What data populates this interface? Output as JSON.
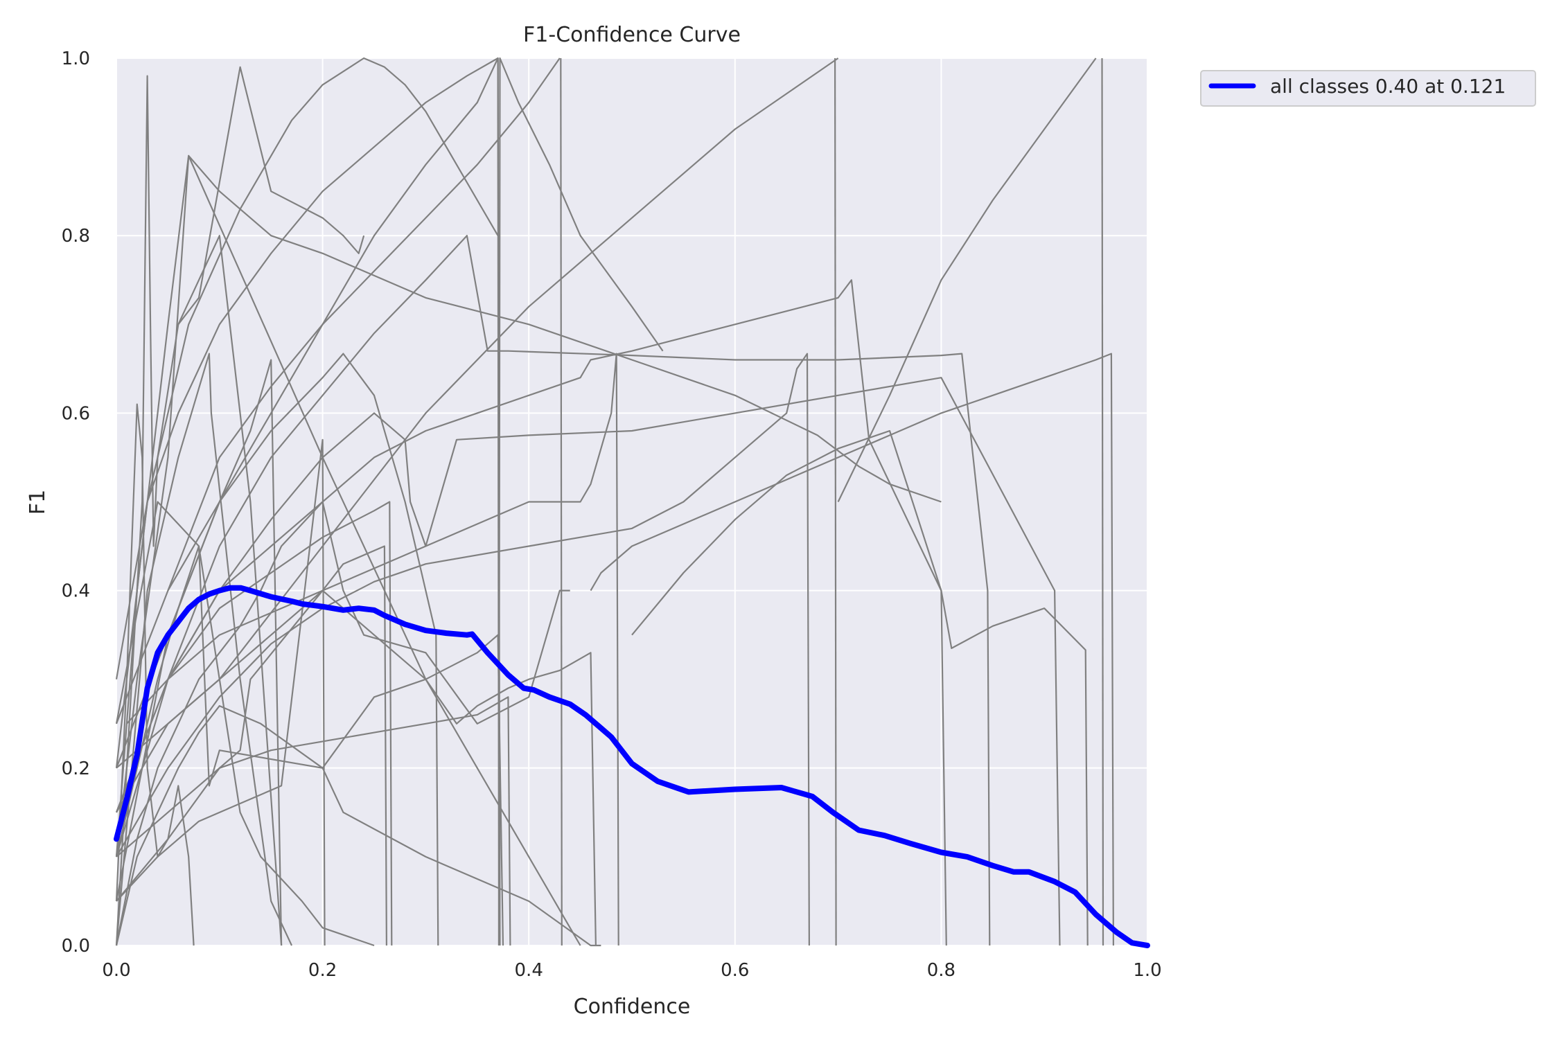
{
  "chart_data": {
    "type": "line",
    "title": "F1-Confidence Curve",
    "xlabel": "Confidence",
    "ylabel": "F1",
    "xlim": [
      0,
      1
    ],
    "ylim": [
      0,
      1
    ],
    "xticks": [
      "0.0",
      "0.2",
      "0.4",
      "0.6",
      "0.8",
      "1.0"
    ],
    "yticks": [
      "0.0",
      "0.2",
      "0.4",
      "0.6",
      "0.8",
      "1.0"
    ],
    "grid": true,
    "legend_position": "outside top-right",
    "colors": {
      "background": "#eaeaf2",
      "grid": "#ffffff",
      "class_lines": "#808080",
      "all_classes": "#0000ff"
    },
    "series": [
      {
        "name": "all classes 0.40 at 0.121",
        "color": "#0000ff",
        "x": [
          0.0,
          0.01,
          0.02,
          0.03,
          0.04,
          0.05,
          0.06,
          0.07,
          0.08,
          0.09,
          0.1,
          0.11,
          0.121,
          0.13,
          0.15,
          0.17,
          0.18,
          0.2,
          0.22,
          0.235,
          0.25,
          0.26,
          0.28,
          0.3,
          0.32,
          0.34,
          0.345,
          0.36,
          0.38,
          0.395,
          0.405,
          0.42,
          0.44,
          0.455,
          0.47,
          0.48,
          0.5,
          0.525,
          0.555,
          0.6,
          0.645,
          0.675,
          0.695,
          0.72,
          0.745,
          0.77,
          0.8,
          0.825,
          0.85,
          0.87,
          0.885,
          0.91,
          0.93,
          0.95,
          0.97,
          0.985,
          1.0
        ],
        "y": [
          0.12,
          0.165,
          0.215,
          0.29,
          0.33,
          0.35,
          0.365,
          0.38,
          0.39,
          0.396,
          0.4,
          0.403,
          0.403,
          0.4,
          0.393,
          0.388,
          0.385,
          0.382,
          0.378,
          0.38,
          0.378,
          0.372,
          0.362,
          0.355,
          0.352,
          0.35,
          0.351,
          0.33,
          0.305,
          0.29,
          0.288,
          0.28,
          0.272,
          0.26,
          0.245,
          0.235,
          0.205,
          0.185,
          0.173,
          0.176,
          0.178,
          0.168,
          0.15,
          0.13,
          0.124,
          0.115,
          0.105,
          0.1,
          0.09,
          0.083,
          0.083,
          0.072,
          0.06,
          0.035,
          0.015,
          0.003,
          0.0
        ]
      }
    ],
    "class_curves": [
      {
        "x": [
          0.0,
          0.015,
          0.025,
          0.03,
          0.033,
          0.036,
          0.04,
          0.06,
          0.08,
          0.1,
          0.13,
          0.16
        ],
        "y": [
          0.0,
          0.3,
          0.5,
          0.98,
          0.7,
          0.45,
          0.55,
          0.7,
          0.75,
          0.8,
          0.5,
          0.0
        ]
      },
      {
        "x": [
          0.0,
          0.02,
          0.05,
          0.07,
          0.1,
          0.15,
          0.2,
          0.3,
          0.4,
          0.5,
          0.6,
          0.68,
          0.72,
          0.75,
          0.8
        ],
        "y": [
          0.1,
          0.4,
          0.7,
          0.89,
          0.85,
          0.8,
          0.78,
          0.73,
          0.7,
          0.66,
          0.62,
          0.575,
          0.54,
          0.52,
          0.5
        ]
      },
      {
        "x": [
          0.0,
          0.03,
          0.07,
          0.12,
          0.17,
          0.2,
          0.24,
          0.26,
          0.28,
          0.3,
          0.33,
          0.36,
          0.37
        ],
        "y": [
          0.2,
          0.5,
          0.7,
          0.83,
          0.93,
          0.97,
          1.0,
          0.99,
          0.97,
          0.94,
          0.88,
          0.82,
          0.8
        ]
      },
      {
        "x": [
          0.0,
          0.03,
          0.06,
          0.1,
          0.15,
          0.2,
          0.25,
          0.3,
          0.34,
          0.37,
          0.371
        ],
        "y": [
          0.3,
          0.5,
          0.6,
          0.7,
          0.78,
          0.85,
          0.9,
          0.95,
          0.98,
          1.0,
          0.0
        ]
      },
      {
        "x": [
          0.371,
          0.372,
          0.39,
          0.42,
          0.45,
          0.5,
          0.53
        ],
        "y": [
          0.0,
          1.0,
          0.95,
          0.88,
          0.8,
          0.72,
          0.67
        ]
      },
      {
        "x": [
          0.0,
          0.05,
          0.1,
          0.15,
          0.2,
          0.25,
          0.3,
          0.35,
          0.37,
          0.372
        ],
        "y": [
          0.25,
          0.4,
          0.5,
          0.6,
          0.7,
          0.8,
          0.88,
          0.95,
          1.0,
          0.0
        ]
      },
      {
        "x": [
          0.05,
          0.1,
          0.15,
          0.2,
          0.25,
          0.3,
          0.35,
          0.4,
          0.43
        ],
        "y": [
          0.4,
          0.55,
          0.63,
          0.7,
          0.76,
          0.82,
          0.88,
          0.95,
          1.0
        ]
      },
      {
        "x": [
          0.431,
          0.432
        ],
        "y": [
          1.0,
          0.0
        ]
      },
      {
        "x": [
          0.0,
          0.1,
          0.2,
          0.3,
          0.4,
          0.5,
          0.6,
          0.7
        ],
        "y": [
          0.2,
          0.3,
          0.45,
          0.6,
          0.72,
          0.82,
          0.92,
          1.0
        ]
      },
      {
        "x": [
          0.697,
          0.698
        ],
        "y": [
          1.0,
          0.0
        ]
      },
      {
        "x": [
          0.7,
          0.75,
          0.8,
          0.85,
          0.9,
          0.95
        ],
        "y": [
          0.5,
          0.62,
          0.75,
          0.84,
          0.92,
          1.0
        ]
      },
      {
        "x": [
          0.956,
          0.957
        ],
        "y": [
          1.0,
          0.0
        ]
      },
      {
        "x": [
          0.0,
          0.05,
          0.1,
          0.15,
          0.2,
          0.25,
          0.3,
          0.35,
          0.4,
          0.45,
          0.46,
          0.5,
          0.6,
          0.7,
          0.713,
          0.73,
          0.8,
          0.805
        ],
        "y": [
          0.15,
          0.3,
          0.4,
          0.45,
          0.5,
          0.55,
          0.58,
          0.6,
          0.62,
          0.64,
          0.66,
          0.67,
          0.7,
          0.73,
          0.75,
          0.57,
          0.4,
          0.0
        ]
      },
      {
        "x": [
          0.0,
          0.05,
          0.1,
          0.15,
          0.2,
          0.25,
          0.3,
          0.34,
          0.36,
          0.38,
          0.5,
          0.6,
          0.7,
          0.8,
          0.82,
          0.845,
          0.847
        ],
        "y": [
          0.1,
          0.3,
          0.45,
          0.55,
          0.62,
          0.69,
          0.75,
          0.8,
          0.67,
          0.67,
          0.665,
          0.66,
          0.66,
          0.665,
          0.667,
          0.4,
          0.0
        ]
      },
      {
        "x": [
          0.0,
          0.05,
          0.1,
          0.15,
          0.2,
          0.22,
          0.25,
          0.28,
          0.31,
          0.312
        ],
        "y": [
          0.05,
          0.35,
          0.5,
          0.58,
          0.64,
          0.667,
          0.62,
          0.5,
          0.35,
          0.0
        ]
      },
      {
        "x": [
          0.0,
          0.03,
          0.06,
          0.09,
          0.092,
          0.12,
          0.15,
          0.17
        ],
        "y": [
          0.0,
          0.4,
          0.55,
          0.667,
          0.6,
          0.3,
          0.05,
          0.0
        ]
      },
      {
        "x": [
          0.0,
          0.05,
          0.1,
          0.13,
          0.15,
          0.16
        ],
        "y": [
          0.2,
          0.35,
          0.5,
          0.58,
          0.66,
          0.0
        ]
      },
      {
        "x": [
          0.05,
          0.1,
          0.15,
          0.2,
          0.25,
          0.28,
          0.285,
          0.3,
          0.33,
          0.4,
          0.5,
          0.6,
          0.7,
          0.8,
          0.91,
          0.915
        ],
        "y": [
          0.3,
          0.4,
          0.48,
          0.55,
          0.6,
          0.57,
          0.5,
          0.45,
          0.57,
          0.575,
          0.58,
          0.6,
          0.62,
          0.64,
          0.4,
          0.0
        ]
      },
      {
        "x": [
          0.0,
          0.05,
          0.1,
          0.15,
          0.2,
          0.25,
          0.265,
          0.267
        ],
        "y": [
          0.15,
          0.3,
          0.38,
          0.42,
          0.46,
          0.49,
          0.5,
          0.0
        ]
      },
      {
        "x": [
          0.0,
          0.05,
          0.1,
          0.15,
          0.2,
          0.25,
          0.3,
          0.4,
          0.5,
          0.55,
          0.6,
          0.65,
          0.66,
          0.67,
          0.672
        ],
        "y": [
          0.1,
          0.2,
          0.28,
          0.34,
          0.38,
          0.41,
          0.43,
          0.45,
          0.47,
          0.5,
          0.55,
          0.6,
          0.65,
          0.667,
          0.0
        ]
      },
      {
        "x": [
          0.0,
          0.05,
          0.1,
          0.12,
          0.13,
          0.2,
          0.3,
          0.4,
          0.45,
          0.46,
          0.48,
          0.485,
          0.487
        ],
        "y": [
          0.05,
          0.12,
          0.2,
          0.22,
          0.3,
          0.4,
          0.45,
          0.5,
          0.5,
          0.52,
          0.6,
          0.667,
          0.0
        ]
      },
      {
        "x": [
          0.0,
          0.05,
          0.1,
          0.15,
          0.2,
          0.25,
          0.3,
          0.35,
          0.38,
          0.382
        ],
        "y": [
          0.1,
          0.15,
          0.2,
          0.22,
          0.23,
          0.24,
          0.25,
          0.26,
          0.28,
          0.0
        ]
      },
      {
        "x": [
          0.0,
          0.05,
          0.1,
          0.15,
          0.2,
          0.22,
          0.26,
          0.262
        ],
        "y": [
          0.15,
          0.25,
          0.3,
          0.35,
          0.4,
          0.43,
          0.45,
          0.0
        ]
      },
      {
        "x": [
          0.0,
          0.02,
          0.04,
          0.06,
          0.08,
          0.1,
          0.14,
          0.2,
          0.22,
          0.3,
          0.4,
          0.46,
          0.47
        ],
        "y": [
          0.0,
          0.1,
          0.15,
          0.2,
          0.24,
          0.27,
          0.25,
          0.2,
          0.15,
          0.1,
          0.05,
          0.0,
          0.0
        ]
      },
      {
        "x": [
          0.46,
          0.47,
          0.5,
          0.6,
          0.7,
          0.8,
          0.85,
          0.9,
          0.95,
          0.965,
          0.967
        ],
        "y": [
          0.4,
          0.42,
          0.45,
          0.5,
          0.55,
          0.6,
          0.62,
          0.64,
          0.66,
          0.667,
          0.0
        ]
      },
      {
        "x": [
          0.5,
          0.55,
          0.6,
          0.65,
          0.7,
          0.75,
          0.8,
          0.81,
          0.85,
          0.9,
          0.94,
          0.942
        ],
        "y": [
          0.35,
          0.42,
          0.48,
          0.53,
          0.56,
          0.58,
          0.4,
          0.335,
          0.36,
          0.38,
          0.333,
          0.0
        ]
      },
      {
        "x": [
          0.0,
          0.02,
          0.04,
          0.06,
          0.08,
          0.1,
          0.12,
          0.14,
          0.16,
          0.2,
          0.22,
          0.24,
          0.3,
          0.35,
          0.4,
          0.43,
          0.44
        ],
        "y": [
          0.0,
          0.12,
          0.2,
          0.25,
          0.3,
          0.33,
          0.36,
          0.4,
          0.45,
          0.5,
          0.4,
          0.35,
          0.33,
          0.25,
          0.28,
          0.4,
          0.4
        ]
      },
      {
        "x": [
          0.0,
          0.01,
          0.02,
          0.025,
          0.03,
          0.04,
          0.05,
          0.06,
          0.07,
          0.075
        ],
        "y": [
          0.05,
          0.3,
          0.61,
          0.55,
          0.2,
          0.1,
          0.12,
          0.18,
          0.1,
          0.0
        ]
      },
      {
        "x": [
          0.0,
          0.02,
          0.04,
          0.06,
          0.08,
          0.09,
          0.1,
          0.2,
          0.25,
          0.3,
          0.35,
          0.37,
          0.375
        ],
        "y": [
          0.1,
          0.2,
          0.3,
          0.38,
          0.45,
          0.18,
          0.22,
          0.2,
          0.28,
          0.3,
          0.33,
          0.35,
          0.0
        ]
      },
      {
        "x": [
          0.06,
          0.08,
          0.12,
          0.15,
          0.2,
          0.22,
          0.235,
          0.24
        ],
        "y": [
          0.7,
          0.73,
          0.99,
          0.85,
          0.82,
          0.8,
          0.78,
          0.8
        ]
      },
      {
        "x": [
          0.0,
          0.02,
          0.05,
          0.07,
          0.2,
          0.3,
          0.4,
          0.44,
          0.45
        ],
        "y": [
          0.1,
          0.3,
          0.55,
          0.89,
          0.55,
          0.3,
          0.1,
          0.02,
          0.0
        ]
      },
      {
        "x": [
          0.0,
          0.04,
          0.08,
          0.1,
          0.12,
          0.14,
          0.18,
          0.2,
          0.25
        ],
        "y": [
          0.25,
          0.5,
          0.45,
          0.3,
          0.15,
          0.1,
          0.05,
          0.02,
          0.0
        ]
      },
      {
        "x": [
          0.0,
          0.04,
          0.06,
          0.08,
          0.12,
          0.16,
          0.2,
          0.202
        ],
        "y": [
          0.05,
          0.1,
          0.12,
          0.14,
          0.16,
          0.18,
          0.57,
          0.0
        ]
      },
      {
        "x": [
          0.01,
          0.05,
          0.1,
          0.2,
          0.25,
          0.3,
          0.33,
          0.35,
          0.38,
          0.4,
          0.43,
          0.46,
          0.465
        ],
        "y": [
          0.25,
          0.3,
          0.35,
          0.4,
          0.35,
          0.3,
          0.25,
          0.27,
          0.29,
          0.3,
          0.31,
          0.33,
          0.0
        ]
      }
    ]
  }
}
